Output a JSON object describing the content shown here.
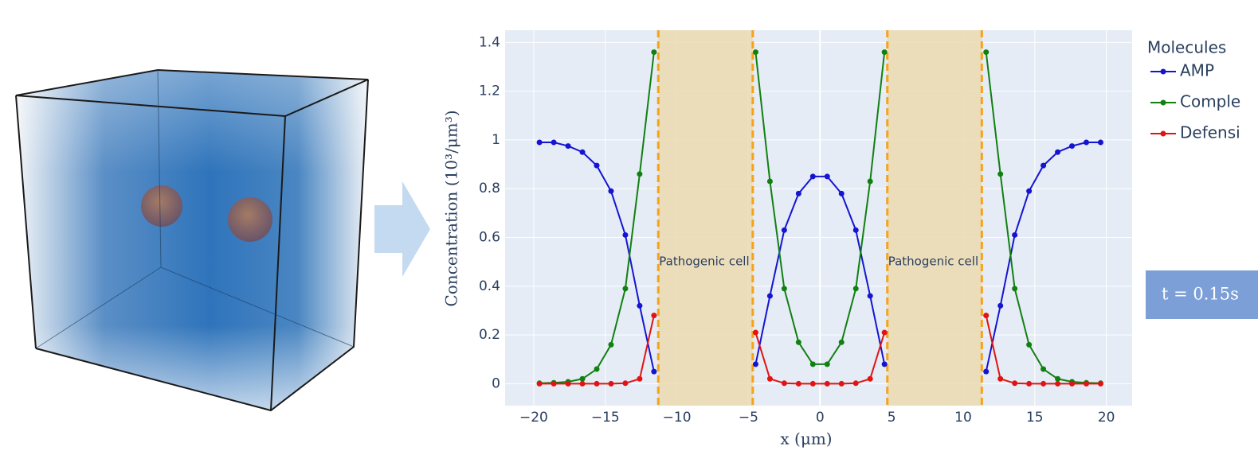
{
  "chart_data": {
    "type": "line",
    "x": [
      -19.6,
      -18.6,
      -17.6,
      -16.6,
      -15.6,
      -14.6,
      -13.6,
      -12.6,
      -11.6,
      null,
      -4.5,
      -3.5,
      -2.5,
      -1.5,
      -0.5,
      0.5,
      1.5,
      2.5,
      3.5,
      4.5,
      null,
      11.6,
      12.6,
      13.6,
      14.6,
      15.6,
      16.6,
      17.6,
      18.6,
      19.6
    ],
    "series": [
      {
        "name": "AMP",
        "color": "#1414d2",
        "values": [
          0.99,
          0.99,
          0.975,
          0.95,
          0.895,
          0.79,
          0.61,
          0.32,
          0.05,
          null,
          0.08,
          0.36,
          0.63,
          0.78,
          0.85,
          0.85,
          0.78,
          0.63,
          0.36,
          0.08,
          null,
          0.05,
          0.32,
          0.61,
          0.79,
          0.895,
          0.95,
          0.975,
          0.99,
          0.99
        ]
      },
      {
        "name": "Comple",
        "color": "#118011",
        "values": [
          0.002,
          0.004,
          0.008,
          0.02,
          0.06,
          0.16,
          0.39,
          0.86,
          1.36,
          null,
          1.36,
          0.83,
          0.39,
          0.17,
          0.08,
          0.08,
          0.17,
          0.39,
          0.83,
          1.36,
          null,
          1.36,
          0.86,
          0.39,
          0.16,
          0.06,
          0.02,
          0.008,
          0.004,
          0.002
        ]
      },
      {
        "name": "Defensi",
        "color": "#e01414",
        "values": [
          0,
          0,
          0,
          0,
          0,
          0,
          0.002,
          0.02,
          0.28,
          null,
          0.21,
          0.02,
          0.002,
          0,
          0,
          0,
          0,
          0.002,
          0.02,
          0.21,
          null,
          0.28,
          0.02,
          0.002,
          0,
          0,
          0,
          0,
          0,
          0
        ]
      }
    ],
    "legend_title": "Molecules",
    "xlabel": "x (μm)",
    "ylabel": "Concentration (10³/μm³)",
    "xlim": [
      -22,
      21.8
    ],
    "ylim": [
      -0.09,
      1.45
    ],
    "xticks": [
      {
        "value": -20,
        "label": "−20"
      },
      {
        "value": -15,
        "label": "−15"
      },
      {
        "value": -10,
        "label": "−10"
      },
      {
        "value": -5,
        "label": "−5"
      },
      0,
      5,
      10,
      15,
      20
    ],
    "yticks": [
      0,
      0.2,
      0.4,
      0.6,
      0.8,
      1,
      1.2,
      1.4
    ],
    "grid": true,
    "regions": [
      {
        "x0": -11.3,
        "x1": -4.7,
        "label": "Pathogenic cell",
        "label_y": 0.5
      },
      {
        "x0": 4.7,
        "x1": 11.3,
        "label": "Pathogenic cell",
        "label_y": 0.5
      }
    ],
    "region_color": "#ecdcb4",
    "boundary_color": "#f5a31a",
    "time_label": "t = 0.15s"
  }
}
